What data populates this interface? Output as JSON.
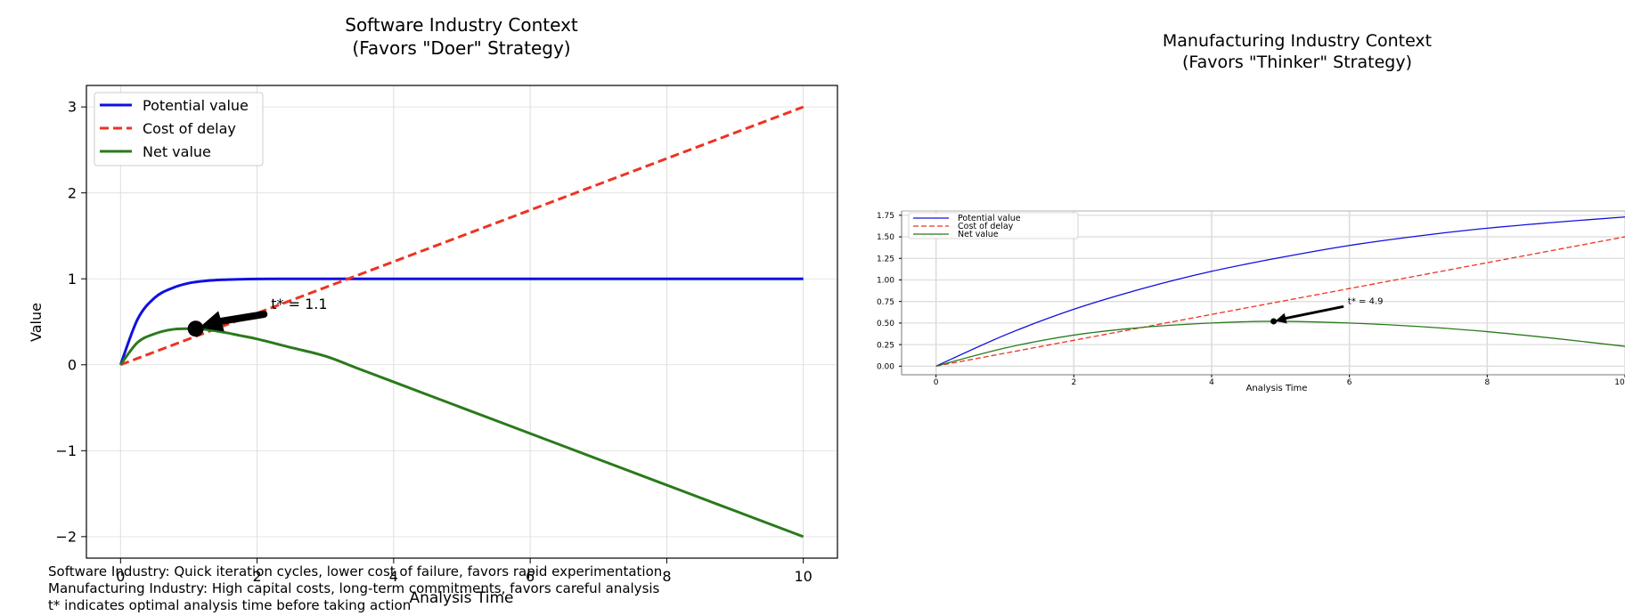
{
  "chart_data": [
    {
      "type": "line",
      "title": "Software Industry Context",
      "subtitle": "(Favors \"Doer\" Strategy)",
      "xlabel": "Analysis Time",
      "ylabel": "Value",
      "xlim": [
        -0.5,
        10.5
      ],
      "ylim": [
        -2.25,
        3.25
      ],
      "xticks": [
        0,
        2,
        4,
        6,
        8,
        10
      ],
      "yticks": [
        -2,
        -1,
        0,
        1,
        2,
        3
      ],
      "ytick_labels": [
        "−2",
        "−1",
        "0",
        "1",
        "2",
        "3"
      ],
      "grid": true,
      "legend": "top-left",
      "series": [
        {
          "name": "Potential value",
          "color": "#1010e0",
          "style": "solid",
          "x": [
            0,
            0.25,
            0.5,
            0.75,
            1,
            1.25,
            1.5,
            1.75,
            2,
            2.5,
            3,
            3.5,
            4,
            5,
            6,
            7,
            8,
            9,
            10
          ],
          "y": [
            0,
            0.53,
            0.78,
            0.89,
            0.95,
            0.976,
            0.989,
            0.995,
            0.998,
            0.9995,
            1,
            1,
            1,
            1,
            1,
            1,
            1,
            1,
            1
          ]
        },
        {
          "name": "Cost of delay",
          "color": "#ee3322",
          "style": "dashed",
          "x": [
            0,
            10
          ],
          "y": [
            0,
            3
          ]
        },
        {
          "name": "Net value",
          "color": "#2a7a1a",
          "style": "solid",
          "x": [
            0,
            0.25,
            0.5,
            0.75,
            1,
            1.1,
            1.25,
            1.5,
            1.75,
            2,
            2.5,
            3,
            3.5,
            4,
            5,
            6,
            7,
            8,
            9,
            10
          ],
          "y": [
            0,
            0.26,
            0.36,
            0.41,
            0.42,
            0.42,
            0.41,
            0.38,
            0.34,
            0.3,
            0.2,
            0.1,
            -0.05,
            -0.2,
            -0.5,
            -0.8,
            -1.1,
            -1.4,
            -1.7,
            -2.0
          ]
        }
      ],
      "annotation": {
        "text": "t* = 1.1",
        "x": 1.1,
        "y": 0.42,
        "text_x": 2.1,
        "text_y": 0.65
      }
    },
    {
      "type": "line",
      "title": "Manufacturing Industry Context",
      "subtitle": "(Favors \"Thinker\" Strategy)",
      "xlabel": "Analysis Time",
      "ylabel": "",
      "xlim": [
        -0.5,
        10
      ],
      "ylim": [
        -0.1,
        1.8
      ],
      "xticks": [
        0,
        2,
        4,
        6,
        8,
        10
      ],
      "yticks": [
        0,
        0.25,
        0.5,
        0.75,
        1.0,
        1.25,
        1.5,
        1.75
      ],
      "ytick_labels": [
        "0.00",
        "0.25",
        "0.50",
        "0.75",
        "1.00",
        "1.25",
        "1.50",
        "1.75"
      ],
      "grid": true,
      "legend": "top-left",
      "series": [
        {
          "name": "Potential value",
          "color": "#1010e0",
          "style": "solid",
          "x": [
            0,
            1,
            2,
            3,
            4,
            5,
            6,
            7,
            8,
            9,
            10
          ],
          "y": [
            0,
            0.36,
            0.66,
            0.9,
            1.1,
            1.26,
            1.4,
            1.51,
            1.6,
            1.67,
            1.73
          ]
        },
        {
          "name": "Cost of delay",
          "color": "#ee3322",
          "style": "dashed",
          "x": [
            0,
            10
          ],
          "y": [
            0,
            1.5
          ]
        },
        {
          "name": "Net value",
          "color": "#2a7a1a",
          "style": "solid",
          "x": [
            0,
            1,
            2,
            3,
            4,
            4.9,
            6,
            7,
            8,
            9,
            10
          ],
          "y": [
            0,
            0.21,
            0.36,
            0.45,
            0.5,
            0.52,
            0.5,
            0.46,
            0.4,
            0.32,
            0.23
          ]
        }
      ],
      "annotation": {
        "text": "t* = 4.9",
        "x": 4.9,
        "y": 0.52,
        "text_x": 5.9,
        "text_y": 0.72
      }
    }
  ],
  "notes": [
    "Software Industry: Quick iteration cycles, lower cost of failure, favors rapid experimentation",
    "Manufacturing Industry: High capital costs, long-term commitments, favors careful analysis",
    "t* indicates optimal analysis time before taking action"
  ]
}
